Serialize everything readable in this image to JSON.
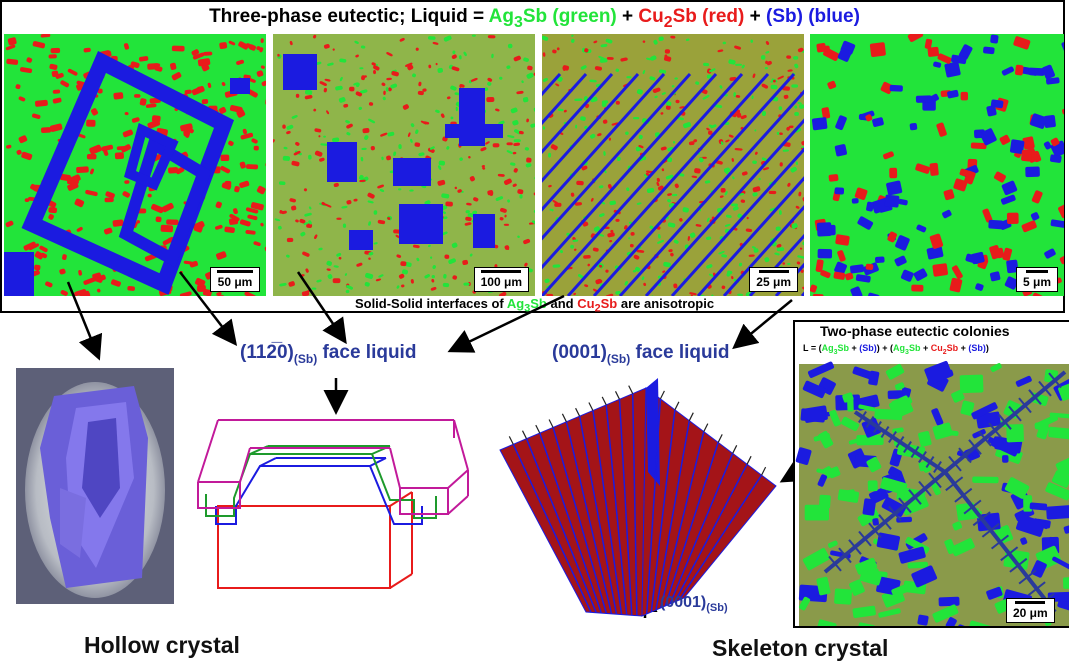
{
  "title": {
    "part1": "Three-phase eutectic; Liquid = ",
    "ag_main": "Ag",
    "ag_sub": "3",
    "ag_tail": "Sb (green)",
    "plus1": " + ",
    "cu_main": "Cu",
    "cu_sub": "2",
    "cu_tail": "Sb (red)",
    "plus2": " + ",
    "sb": "(Sb) (blue)"
  },
  "panels": [
    {
      "scale": "50 μm"
    },
    {
      "scale": "100 μm"
    },
    {
      "scale": "25 μm"
    },
    {
      "scale": "5 μm"
    }
  ],
  "solid_note": {
    "part1": "Solid-Solid interfaces of ",
    "ag_main": "Ag",
    "ag_sub": "3",
    "ag_tail": "Sb",
    "mid": " and ",
    "cu_main": "Cu",
    "cu_sub": "2",
    "cu_tail": "Sb",
    "end": " are anisotropic"
  },
  "face_1120": {
    "main": "(112̅0)",
    "sub": "(Sb)",
    "tail": " face liquid"
  },
  "face_0001": {
    "main": "(0001)",
    "sub": "(Sb)",
    "tail": " face liquid"
  },
  "skeleton_axis": {
    "main": "(0001)",
    "sub": "(Sb)"
  },
  "labels": {
    "hollow": "Hollow crystal",
    "skeleton": "Skeleton crystal"
  },
  "colony": {
    "title": "Two-phase eutectic colonies",
    "formula": {
      "l": "L = (",
      "ag1": "Ag",
      "ag1_sub": "3",
      "ag1_tail": "Sb",
      "p1": " + ",
      "sb1": "(Sb)",
      "close1": ") + (",
      "ag2": "Ag",
      "ag2_sub": "3",
      "ag2_tail": "Sb",
      "p2": " + ",
      "cu2": "Cu",
      "cu2_sub": "2",
      "cu2_tail": "Sb",
      "p3": " + ",
      "sb2": "(Sb)",
      "close2": ")"
    },
    "scale": "20 μm"
  },
  "colors": {
    "green": "#22e43a",
    "red": "#e81b1b",
    "blue": "#1b1be0",
    "label_blue": "#2a3a9a"
  }
}
